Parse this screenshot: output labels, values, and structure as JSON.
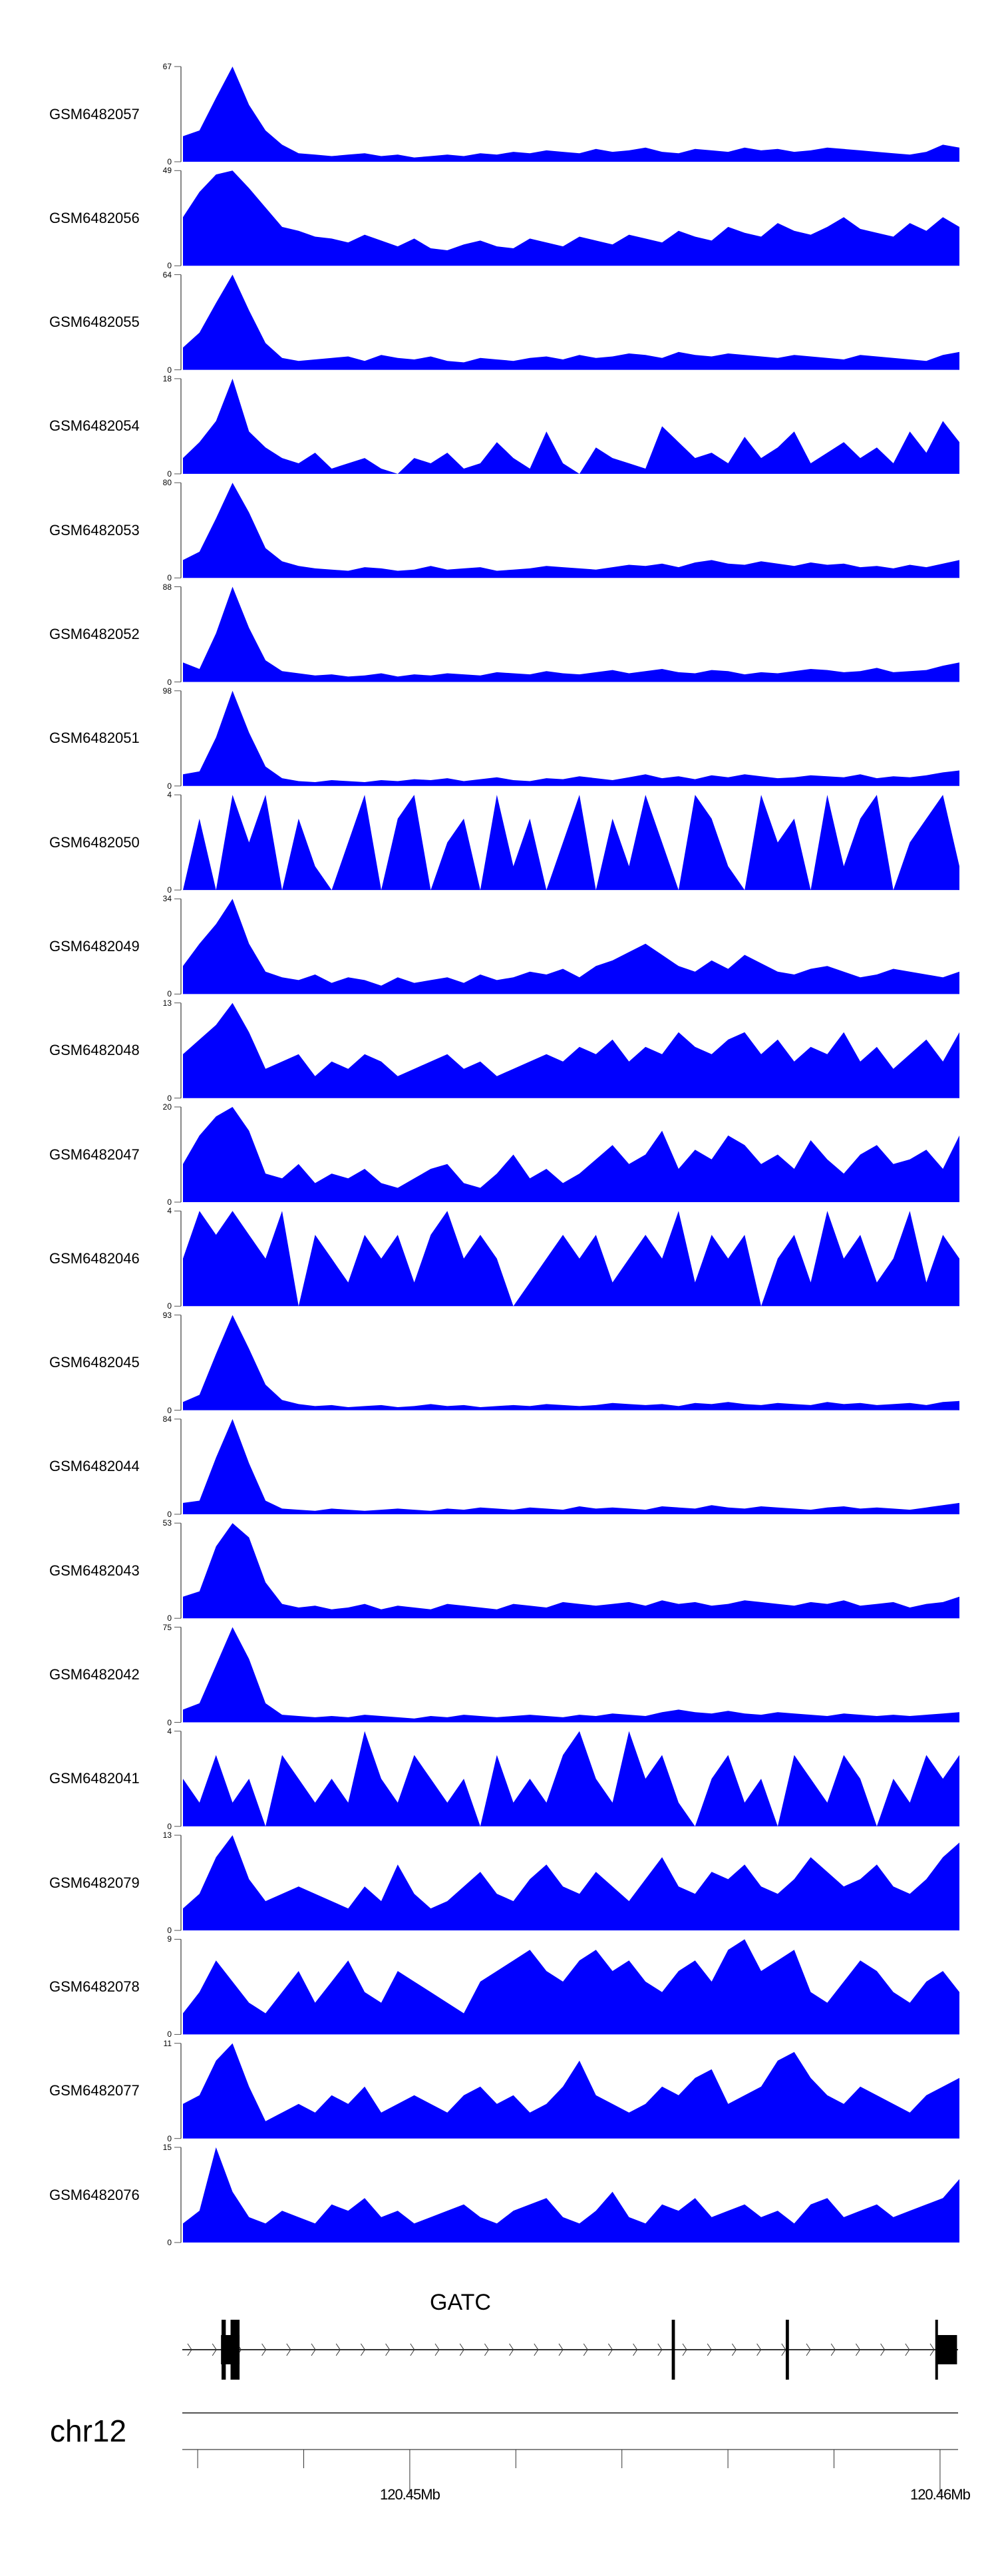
{
  "chart_data": {
    "type": "area",
    "title": "",
    "region": {
      "chromosome": "chr12",
      "start": 120445710,
      "end": 120460340
    },
    "fill_color": "#0000ff",
    "series": [
      {
        "name": "GSM6482057",
        "ylim": [
          0,
          67
        ],
        "values": [
          18,
          22,
          45,
          67,
          40,
          22,
          12,
          6,
          5,
          4,
          5,
          6,
          4,
          5,
          3,
          4,
          5,
          4,
          6,
          5,
          7,
          6,
          8,
          7,
          6,
          9,
          7,
          8,
          10,
          7,
          6,
          9,
          8,
          7,
          10,
          8,
          9,
          7,
          8,
          10,
          9,
          8,
          7,
          6,
          5,
          7,
          12,
          10
        ]
      },
      {
        "name": "GSM6482056",
        "ylim": [
          0,
          49
        ],
        "values": [
          25,
          38,
          47,
          49,
          40,
          30,
          20,
          18,
          15,
          14,
          12,
          16,
          13,
          10,
          14,
          9,
          8,
          11,
          13,
          10,
          9,
          14,
          12,
          10,
          15,
          13,
          11,
          16,
          14,
          12,
          18,
          15,
          13,
          20,
          17,
          15,
          22,
          18,
          16,
          20,
          25,
          19,
          17,
          15,
          22,
          18,
          25,
          20
        ]
      },
      {
        "name": "GSM6482055",
        "ylim": [
          0,
          64
        ],
        "values": [
          15,
          25,
          45,
          64,
          40,
          18,
          8,
          6,
          7,
          8,
          9,
          6,
          10,
          8,
          7,
          9,
          6,
          5,
          8,
          7,
          6,
          8,
          9,
          7,
          10,
          8,
          9,
          11,
          10,
          8,
          12,
          10,
          9,
          11,
          10,
          9,
          8,
          10,
          9,
          8,
          7,
          10,
          9,
          8,
          7,
          6,
          10,
          12
        ]
      },
      {
        "name": "GSM6482054",
        "ylim": [
          0,
          18
        ],
        "values": [
          3,
          6,
          10,
          18,
          8,
          5,
          3,
          2,
          4,
          1,
          2,
          3,
          1,
          0,
          3,
          2,
          4,
          1,
          2,
          6,
          3,
          1,
          8,
          2,
          0,
          5,
          3,
          2,
          1,
          9,
          6,
          3,
          4,
          2,
          7,
          3,
          5,
          8,
          2,
          4,
          6,
          3,
          5,
          2,
          8,
          4,
          10,
          6
        ]
      },
      {
        "name": "GSM6482053",
        "ylim": [
          0,
          80
        ],
        "values": [
          15,
          22,
          50,
          80,
          55,
          25,
          14,
          10,
          8,
          7,
          6,
          9,
          8,
          6,
          7,
          10,
          7,
          8,
          9,
          6,
          7,
          8,
          10,
          9,
          8,
          7,
          9,
          11,
          10,
          12,
          9,
          13,
          15,
          12,
          11,
          14,
          12,
          10,
          13,
          11,
          12,
          9,
          10,
          8,
          11,
          9,
          12,
          15
        ]
      },
      {
        "name": "GSM6482052",
        "ylim": [
          0,
          88
        ],
        "values": [
          18,
          12,
          45,
          88,
          50,
          20,
          10,
          8,
          6,
          7,
          5,
          6,
          8,
          5,
          7,
          6,
          8,
          7,
          6,
          9,
          8,
          7,
          10,
          8,
          7,
          9,
          11,
          8,
          10,
          12,
          9,
          8,
          11,
          10,
          7,
          9,
          8,
          10,
          12,
          11,
          9,
          10,
          13,
          9,
          10,
          11,
          15,
          18
        ]
      },
      {
        "name": "GSM6482051",
        "ylim": [
          0,
          98
        ],
        "values": [
          12,
          15,
          50,
          98,
          55,
          20,
          8,
          5,
          4,
          6,
          5,
          4,
          6,
          5,
          7,
          6,
          8,
          5,
          7,
          9,
          6,
          5,
          8,
          7,
          10,
          8,
          6,
          9,
          12,
          8,
          10,
          7,
          11,
          9,
          12,
          10,
          8,
          9,
          11,
          10,
          9,
          12,
          8,
          10,
          9,
          11,
          14,
          16
        ]
      },
      {
        "name": "GSM6482050",
        "ylim": [
          0,
          4
        ],
        "values": [
          0,
          3,
          0,
          4,
          2,
          4,
          0,
          3,
          1,
          0,
          2,
          4,
          0,
          3,
          4,
          0,
          2,
          3,
          0,
          4,
          1,
          3,
          0,
          2,
          4,
          0,
          3,
          1,
          4,
          2,
          0,
          4,
          3,
          1,
          0,
          4,
          2,
          3,
          0,
          4,
          1,
          3,
          4,
          0,
          2,
          3,
          4,
          1
        ]
      },
      {
        "name": "GSM6482049",
        "ylim": [
          0,
          34
        ],
        "values": [
          10,
          18,
          25,
          34,
          18,
          8,
          6,
          5,
          7,
          4,
          6,
          5,
          3,
          6,
          4,
          5,
          6,
          4,
          7,
          5,
          6,
          8,
          7,
          9,
          6,
          10,
          12,
          15,
          18,
          14,
          10,
          8,
          12,
          9,
          14,
          11,
          8,
          7,
          9,
          10,
          8,
          6,
          7,
          9,
          8,
          7,
          6,
          8
        ]
      },
      {
        "name": "GSM6482048",
        "ylim": [
          0,
          13
        ],
        "values": [
          6,
          8,
          10,
          13,
          9,
          4,
          5,
          6,
          3,
          5,
          4,
          6,
          5,
          3,
          4,
          5,
          6,
          4,
          5,
          3,
          4,
          5,
          6,
          5,
          7,
          6,
          8,
          5,
          7,
          6,
          9,
          7,
          6,
          8,
          9,
          6,
          8,
          5,
          7,
          6,
          9,
          5,
          7,
          4,
          6,
          8,
          5,
          9
        ]
      },
      {
        "name": "GSM6482047",
        "ylim": [
          0,
          20
        ],
        "values": [
          8,
          14,
          18,
          20,
          15,
          6,
          5,
          8,
          4,
          6,
          5,
          7,
          4,
          3,
          5,
          7,
          8,
          4,
          3,
          6,
          10,
          5,
          7,
          4,
          6,
          9,
          12,
          8,
          10,
          15,
          7,
          11,
          9,
          14,
          12,
          8,
          10,
          7,
          13,
          9,
          6,
          10,
          12,
          8,
          9,
          11,
          7,
          14
        ]
      },
      {
        "name": "GSM6482046",
        "ylim": [
          0,
          4
        ],
        "values": [
          2,
          4,
          3,
          4,
          3,
          2,
          4,
          0,
          3,
          2,
          1,
          3,
          2,
          3,
          1,
          3,
          4,
          2,
          3,
          2,
          0,
          1,
          2,
          3,
          2,
          3,
          1,
          2,
          3,
          2,
          4,
          1,
          3,
          2,
          3,
          0,
          2,
          3,
          1,
          4,
          2,
          3,
          1,
          2,
          4,
          1,
          3,
          2
        ]
      },
      {
        "name": "GSM6482045",
        "ylim": [
          0,
          93
        ],
        "values": [
          8,
          15,
          55,
          93,
          60,
          25,
          10,
          6,
          4,
          5,
          3,
          4,
          5,
          3,
          4,
          6,
          4,
          5,
          3,
          4,
          5,
          4,
          6,
          5,
          4,
          5,
          7,
          6,
          5,
          6,
          4,
          7,
          6,
          8,
          6,
          5,
          7,
          6,
          5,
          8,
          6,
          7,
          5,
          6,
          7,
          5,
          8,
          9
        ]
      },
      {
        "name": "GSM6482044",
        "ylim": [
          0,
          84
        ],
        "values": [
          10,
          12,
          50,
          84,
          45,
          12,
          5,
          4,
          3,
          5,
          4,
          3,
          4,
          5,
          4,
          3,
          5,
          4,
          6,
          5,
          4,
          6,
          5,
          4,
          7,
          5,
          6,
          5,
          4,
          7,
          6,
          5,
          8,
          6,
          5,
          7,
          6,
          5,
          4,
          6,
          7,
          5,
          6,
          5,
          4,
          6,
          8,
          10
        ]
      },
      {
        "name": "GSM6482043",
        "ylim": [
          0,
          53
        ],
        "values": [
          12,
          15,
          40,
          53,
          45,
          20,
          8,
          6,
          7,
          5,
          6,
          8,
          5,
          7,
          6,
          5,
          8,
          7,
          6,
          5,
          8,
          7,
          6,
          9,
          8,
          7,
          8,
          9,
          7,
          10,
          8,
          9,
          7,
          8,
          10,
          9,
          8,
          7,
          9,
          8,
          10,
          7,
          8,
          9,
          6,
          8,
          9,
          12
        ]
      },
      {
        "name": "GSM6482042",
        "ylim": [
          0,
          75
        ],
        "values": [
          10,
          15,
          45,
          75,
          50,
          15,
          6,
          5,
          4,
          5,
          4,
          6,
          5,
          4,
          3,
          5,
          4,
          6,
          5,
          4,
          5,
          6,
          5,
          4,
          6,
          5,
          7,
          6,
          5,
          8,
          10,
          8,
          7,
          9,
          7,
          6,
          8,
          7,
          6,
          5,
          7,
          6,
          5,
          6,
          5,
          6,
          7,
          8
        ]
      },
      {
        "name": "GSM6482041",
        "ylim": [
          0,
          4
        ],
        "values": [
          2,
          1,
          3,
          1,
          2,
          0,
          3,
          2,
          1,
          2,
          1,
          4,
          2,
          1,
          3,
          2,
          1,
          2,
          0,
          3,
          1,
          2,
          1,
          3,
          4,
          2,
          1,
          4,
          2,
          3,
          1,
          0,
          2,
          3,
          1,
          2,
          0,
          3,
          2,
          1,
          3,
          2,
          0,
          2,
          1,
          3,
          2,
          3
        ]
      },
      {
        "name": "GSM6482079",
        "ylim": [
          0,
          13
        ],
        "values": [
          3,
          5,
          10,
          13,
          7,
          4,
          5,
          6,
          5,
          4,
          3,
          6,
          4,
          9,
          5,
          3,
          4,
          6,
          8,
          5,
          4,
          7,
          9,
          6,
          5,
          8,
          6,
          4,
          7,
          10,
          6,
          5,
          8,
          7,
          9,
          6,
          5,
          7,
          10,
          8,
          6,
          7,
          9,
          6,
          5,
          7,
          10,
          12
        ]
      },
      {
        "name": "GSM6482078",
        "ylim": [
          0,
          9
        ],
        "values": [
          2,
          4,
          7,
          5,
          3,
          2,
          4,
          6,
          3,
          5,
          7,
          4,
          3,
          6,
          5,
          4,
          3,
          2,
          5,
          6,
          7,
          8,
          6,
          5,
          7,
          8,
          6,
          7,
          5,
          4,
          6,
          7,
          5,
          8,
          9,
          6,
          7,
          8,
          4,
          3,
          5,
          7,
          6,
          4,
          3,
          5,
          6,
          4
        ]
      },
      {
        "name": "GSM6482077",
        "ylim": [
          0,
          11
        ],
        "values": [
          4,
          5,
          9,
          11,
          6,
          2,
          3,
          4,
          3,
          5,
          4,
          6,
          3,
          4,
          5,
          4,
          3,
          5,
          6,
          4,
          5,
          3,
          4,
          6,
          9,
          5,
          4,
          3,
          4,
          6,
          5,
          7,
          8,
          4,
          5,
          6,
          9,
          10,
          7,
          5,
          4,
          6,
          5,
          4,
          3,
          5,
          6,
          7
        ]
      },
      {
        "name": "GSM6482076",
        "ylim": [
          0,
          15
        ],
        "values": [
          3,
          5,
          15,
          8,
          4,
          3,
          5,
          4,
          3,
          6,
          5,
          7,
          4,
          5,
          3,
          4,
          5,
          6,
          4,
          3,
          5,
          6,
          7,
          4,
          3,
          5,
          8,
          4,
          3,
          6,
          5,
          7,
          4,
          5,
          6,
          4,
          5,
          3,
          6,
          7,
          4,
          5,
          6,
          4,
          5,
          6,
          7,
          10
        ]
      }
    ],
    "gene": {
      "name": "GATC",
      "strand": "+",
      "utr": [
        [
          120446440,
          120446790
        ],
        [
          120459930,
          120460320
        ]
      ],
      "exons": [
        [
          120446450,
          120446530
        ],
        [
          120446620,
          120446790
        ],
        [
          120454940,
          120455000
        ],
        [
          120457090,
          120457150
        ],
        [
          120459910,
          120459940
        ]
      ]
    },
    "axis": {
      "chromosome_label": "chr12",
      "ticks": [
        120446000,
        120448000,
        120450000,
        120452000,
        120454000,
        120456000,
        120458000,
        120460000
      ],
      "tick_labels": [
        {
          "pos": 120450000,
          "label": "120.45Mb"
        },
        {
          "pos": 120460000,
          "label": "120.46Mb"
        }
      ]
    }
  }
}
